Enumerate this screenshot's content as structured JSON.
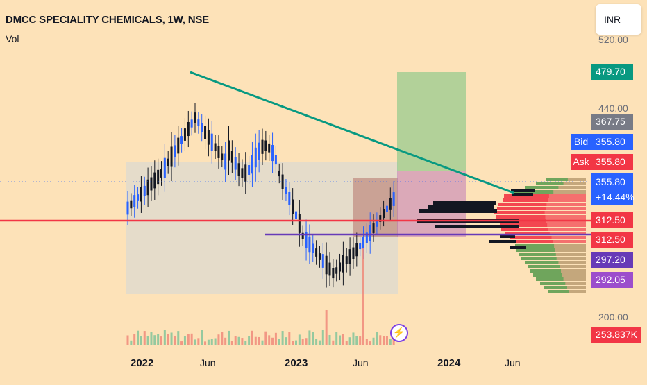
{
  "header": {
    "title": "DMCC SPECIALITY CHEMICALS, 1W, NSE",
    "indicator": "Vol"
  },
  "currency_button": "INR",
  "price_axis": {
    "ticks": [
      "520.00",
      "440.00",
      "200.00"
    ]
  },
  "time_axis": {
    "ticks": [
      "2022",
      "Jun",
      "2023",
      "Jun",
      "2024",
      "Jun"
    ]
  },
  "price_labels": {
    "target": "479.70",
    "high": "367.75",
    "bid_tag": "Bid",
    "bid": "355.80",
    "ask_tag": "Ask",
    "ask": "355.80",
    "last": "355.80",
    "change": "+14.44%",
    "level_red_1": "312.50",
    "level_red_2": "312.50",
    "level_purple_1": "297.20",
    "level_purple_2": "292.05",
    "volume": "253.837K"
  },
  "colors": {
    "background": "#fde2b8",
    "up_candle": "#2962ff",
    "down_candle": "#131722",
    "trendline": "#089981",
    "support_line": "#f23645",
    "neckline": "#673ab7",
    "target_zone": "#81c784"
  },
  "icons": {
    "lightning": "lightning-icon"
  }
}
